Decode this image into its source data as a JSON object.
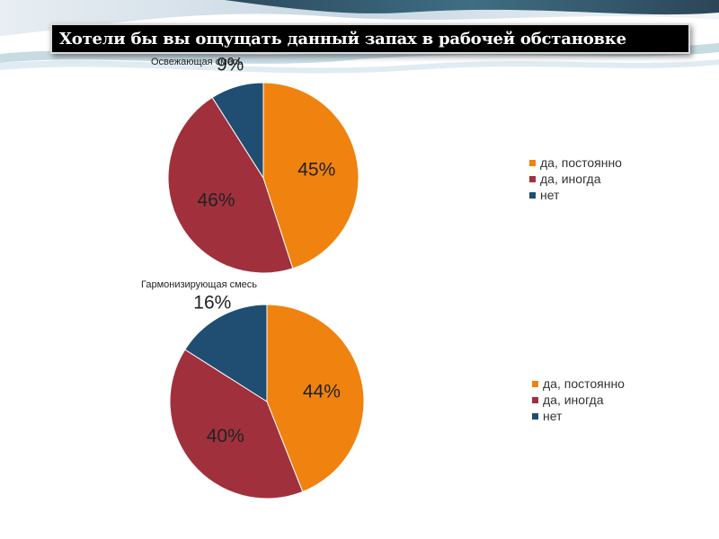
{
  "title": "Хотели бы вы ощущать данный запах в рабочей обстановке",
  "colors": {
    "orange": "#f0820f",
    "red": "#a0313c",
    "blue": "#1f4e72"
  },
  "chart_data": [
    {
      "type": "pie",
      "title": "Освежающая смесь",
      "categories": [
        "да, постоянно",
        "да, иногда",
        "нет"
      ],
      "values": [
        45,
        46,
        9
      ],
      "labels": [
        "45%",
        "46%",
        "9%"
      ],
      "legend": [
        "да, постоянно",
        "да, иногда",
        "нет"
      ],
      "legend_position": "right"
    },
    {
      "type": "pie",
      "title": "Гармонизирующая смесь",
      "categories": [
        "да, постоянно",
        "да, иногда",
        "нет"
      ],
      "values": [
        44,
        40,
        16
      ],
      "labels": [
        "44%",
        "40%",
        "16%"
      ],
      "legend": [
        "да, постоянно",
        "да, иногда",
        "нет"
      ],
      "legend_position": "right"
    }
  ]
}
